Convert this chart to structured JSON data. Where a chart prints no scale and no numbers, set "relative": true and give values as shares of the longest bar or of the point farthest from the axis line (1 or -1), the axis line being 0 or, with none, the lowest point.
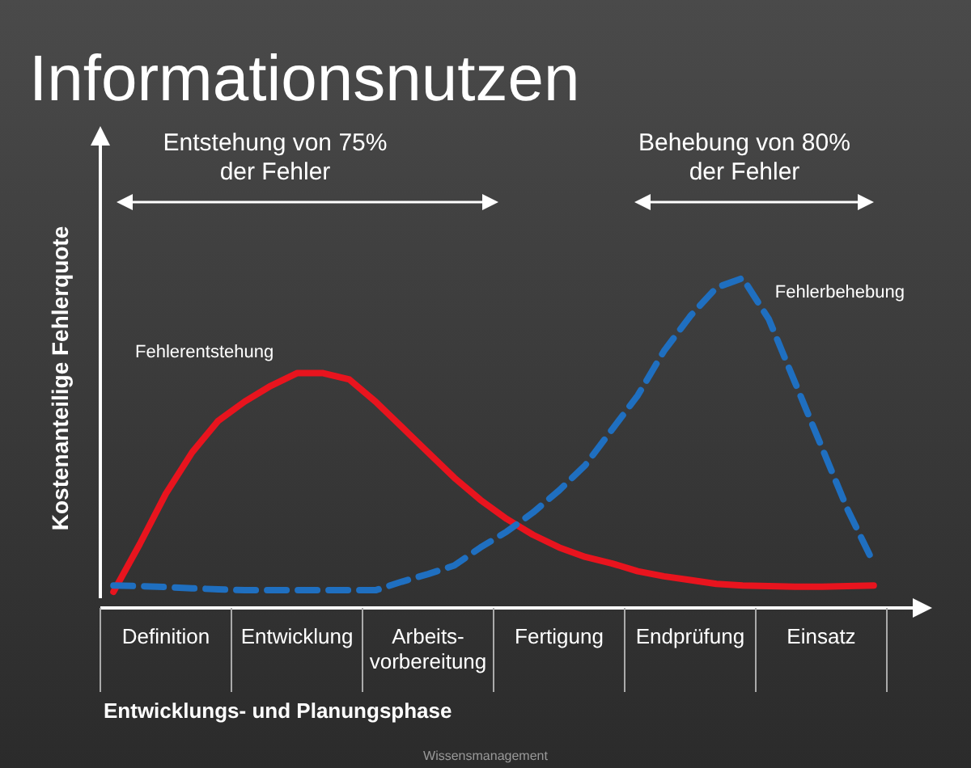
{
  "chart_data": {
    "type": "line",
    "relative": true,
    "title": "Informationsnutzen",
    "ylabel": "Kostenanteilige Fehlerquote",
    "categories": [
      null,
      null,
      "Definition",
      null,
      null,
      null,
      null,
      "Entwicklung",
      null,
      null,
      null,
      null,
      "Arbeits-\nvorbereitung",
      null,
      null,
      null,
      null,
      "Fertigung",
      null,
      null,
      null,
      null,
      "Endprüfung",
      null,
      null,
      null,
      null,
      "Einsatz",
      null,
      null
    ],
    "series": [
      {
        "name": "Fehlerentstehung",
        "color": "#e8141e",
        "line_style": "solid",
        "values": [
          0.01,
          0.16,
          0.32,
          0.45,
          0.55,
          0.61,
          0.66,
          0.7,
          0.7,
          0.68,
          0.61,
          0.53,
          0.45,
          0.37,
          0.3,
          0.24,
          0.19,
          0.15,
          0.12,
          0.1,
          0.075,
          0.059,
          0.047,
          0.035,
          0.03,
          0.028,
          0.026,
          0.026,
          0.028,
          0.03
        ]
      },
      {
        "name": "Fehlerbehebung",
        "color": "#1f6fc0",
        "line_style": "dashed",
        "values": [
          0.03,
          0.028,
          0.025,
          0.021,
          0.018,
          0.015,
          0.015,
          0.015,
          0.015,
          0.015,
          0.015,
          0.042,
          0.066,
          0.093,
          0.15,
          0.2,
          0.26,
          0.33,
          0.41,
          0.52,
          0.63,
          0.77,
          0.88,
          0.97,
          1.0,
          0.87,
          0.67,
          0.47,
          0.27,
          0.1
        ]
      }
    ],
    "annotations": [
      "Entstehung  von 75%\nder Fehler",
      "Behebung von 80%\nder Fehler",
      "Entwicklungs- und Planungsphase",
      "Wissensmanagement"
    ]
  }
}
